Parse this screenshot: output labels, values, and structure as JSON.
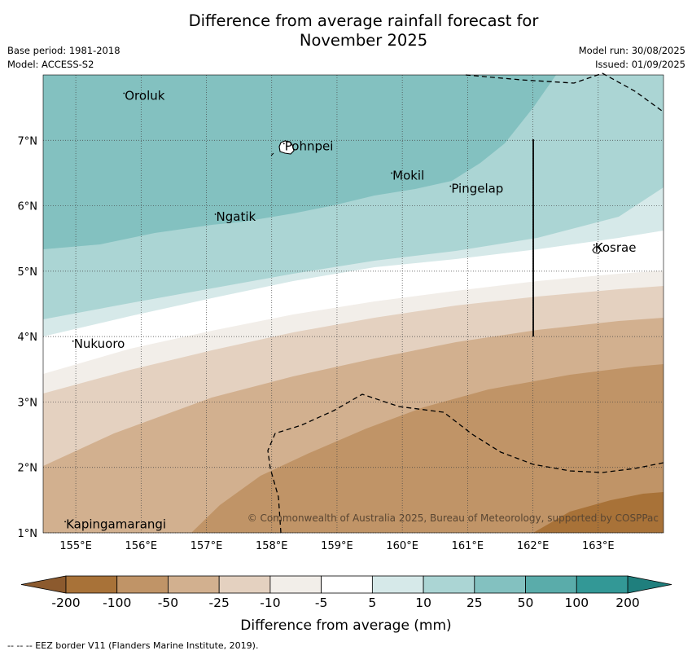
{
  "title": {
    "line1": "Difference from average rainfall forecast for",
    "line2": "November 2025"
  },
  "meta": {
    "base_period": "Base period: 1981-2018",
    "model": "Model: ACCESS-S2",
    "model_run": "Model run: 30/08/2025",
    "issued": "Issued: 01/09/2025"
  },
  "map": {
    "lon_range": [
      154.5,
      164.0
    ],
    "lat_range": [
      1.0,
      8.0
    ],
    "x_ticks": [
      {
        "value": 155,
        "label": "155°E"
      },
      {
        "value": 156,
        "label": "156°E"
      },
      {
        "value": 157,
        "label": "157°E"
      },
      {
        "value": 158,
        "label": "158°E"
      },
      {
        "value": 159,
        "label": "159°E"
      },
      {
        "value": 160,
        "label": "160°E"
      },
      {
        "value": 161,
        "label": "161°E"
      },
      {
        "value": 162,
        "label": "162°E"
      },
      {
        "value": 163,
        "label": "163°E"
      }
    ],
    "y_ticks": [
      {
        "value": 1,
        "label": "1°N"
      },
      {
        "value": 2,
        "label": "2°N"
      },
      {
        "value": 3,
        "label": "3°N"
      },
      {
        "value": 4,
        "label": "4°N"
      },
      {
        "value": 5,
        "label": "5°N"
      },
      {
        "value": 6,
        "label": "6°N"
      },
      {
        "value": 7,
        "label": "7°N"
      }
    ],
    "places": [
      {
        "name": "Oroluk",
        "lon": 155.75,
        "lat": 7.62
      },
      {
        "name": "Pohnpei",
        "lon": 158.2,
        "lat": 6.85
      },
      {
        "name": "Mokil",
        "lon": 159.85,
        "lat": 6.4
      },
      {
        "name": "Pingelap",
        "lon": 160.75,
        "lat": 6.2
      },
      {
        "name": "Ngatik",
        "lon": 157.15,
        "lat": 5.77
      },
      {
        "name": "Kosrae",
        "lon": 162.95,
        "lat": 5.3
      },
      {
        "name": "Nukuoro",
        "lon": 154.97,
        "lat": 3.83
      },
      {
        "name": "Kapingamarangi",
        "lon": 154.85,
        "lat": 1.07
      }
    ],
    "copyright": "© Commonwealth of Australia 2025, Bureau of Meteorology, supported by COSPPac"
  },
  "colorbar": {
    "labels": [
      "-200",
      "-100",
      "-50",
      "-25",
      "-10",
      "-5",
      "5",
      "10",
      "25",
      "50",
      "100",
      "200"
    ],
    "colors": [
      "#a87238",
      "#c09467",
      "#d2b08f",
      "#e4d1c0",
      "#f2eee9",
      "#ffffff",
      "#d6e9e9",
      "#abd5d4",
      "#83c1c0",
      "#5aacaa",
      "#339896"
    ],
    "extend_low_color": "#8c5a2e",
    "extend_high_color": "#1f7f7d",
    "label": "Difference from average (mm)"
  },
  "footnote": "-- -- -- EEZ border V11 (Flanders Marine Institute, 2019)."
}
